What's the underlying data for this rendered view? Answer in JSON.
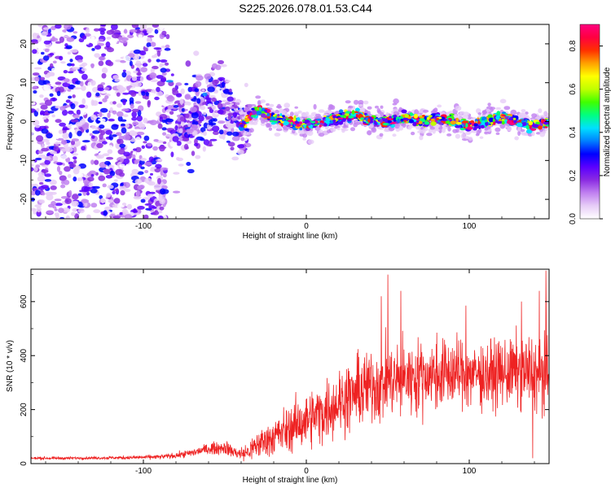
{
  "title": "S225.2026.078.01.53.C44",
  "chart_data": [
    {
      "type": "heatmap",
      "xlabel": "Height of straight line (km)",
      "ylabel": "Frequency (Hz)",
      "xlim": [
        -169,
        149
      ],
      "ylim": [
        -25,
        25
      ],
      "x_ticks": [
        -100,
        0,
        100
      ],
      "x_tick_labels": [
        "-100",
        "0",
        "100"
      ],
      "y_ticks": [
        -20,
        -10,
        0,
        10,
        20
      ],
      "y_tick_labels": [
        "-20",
        "-10",
        "0",
        "10",
        "20"
      ],
      "colorbar": {
        "label": "Normalized spectral amplitude",
        "range": [
          0,
          0.9
        ],
        "ticks": [
          0.0,
          0.2,
          0.4,
          0.6,
          0.8
        ],
        "tick_labels": [
          "0.0",
          "0.2",
          "0.4",
          "0.6",
          "0.8"
        ],
        "colors": [
          "#ffffff",
          "#e7cdf7",
          "#c080f0",
          "#8a2be2",
          "#5a00ff",
          "#0000ff",
          "#0080ff",
          "#00e0ff",
          "#00ff80",
          "#40ff00",
          "#c0ff00",
          "#ffff00",
          "#ffa000",
          "#ff3000",
          "#ff0040",
          "#ff0080"
        ]
      },
      "ridge": {
        "description_free": true,
        "x": [
          -80,
          -70,
          -60,
          -50,
          -40,
          -30,
          -20,
          -10,
          0,
          10,
          20,
          30,
          40,
          50,
          60,
          70,
          80,
          90,
          100,
          110,
          120,
          130,
          140,
          148
        ],
        "freq": [
          1,
          -2,
          1,
          3,
          -1,
          3,
          1,
          0,
          -1,
          0,
          1,
          2,
          0,
          0,
          1,
          0,
          1,
          0,
          -1,
          0,
          1,
          0,
          -1,
          0
        ]
      }
    },
    {
      "type": "line",
      "xlabel": "Height of straight line (km)",
      "ylabel": "SNR (10 * v/v)",
      "xlim": [
        -169,
        149
      ],
      "ylim": [
        0,
        720
      ],
      "x_ticks": [
        -100,
        0,
        100
      ],
      "x_tick_labels": [
        "-100",
        "0",
        "100"
      ],
      "y_ticks": [
        0,
        200,
        400,
        600
      ],
      "y_tick_labels": [
        "0",
        "200",
        "400",
        "600"
      ],
      "series": [
        {
          "name": "SNR",
          "color": "#ee2222",
          "x": [
            -169,
            -150,
            -130,
            -110,
            -90,
            -80,
            -70,
            -60,
            -50,
            -45,
            -40,
            -35,
            -30,
            -20,
            -10,
            0,
            10,
            20,
            30,
            40,
            50,
            60,
            70,
            80,
            90,
            100,
            110,
            120,
            130,
            140,
            149
          ],
          "y": [
            20,
            20,
            21,
            22,
            25,
            30,
            40,
            55,
            60,
            45,
            35,
            45,
            70,
            100,
            130,
            160,
            190,
            230,
            260,
            290,
            305,
            315,
            325,
            330,
            335,
            330,
            330,
            335,
            340,
            335,
            330
          ],
          "noise_amp": [
            5,
            5,
            5,
            6,
            8,
            10,
            15,
            20,
            25,
            25,
            25,
            40,
            50,
            70,
            85,
            100,
            110,
            120,
            130,
            140,
            140,
            140,
            130,
            130,
            130,
            120,
            120,
            120,
            130,
            140,
            150
          ],
          "peaks": [
            {
              "x": 50,
              "y": 700
            },
            {
              "x": 58,
              "y": 640
            },
            {
              "x": 46,
              "y": 620
            },
            {
              "x": 147,
              "y": 715
            },
            {
              "x": 143,
              "y": 640
            },
            {
              "x": 132,
              "y": 600
            },
            {
              "x": 98,
              "y": 585
            },
            {
              "x": 139,
              "y": 20
            }
          ]
        }
      ]
    }
  ]
}
